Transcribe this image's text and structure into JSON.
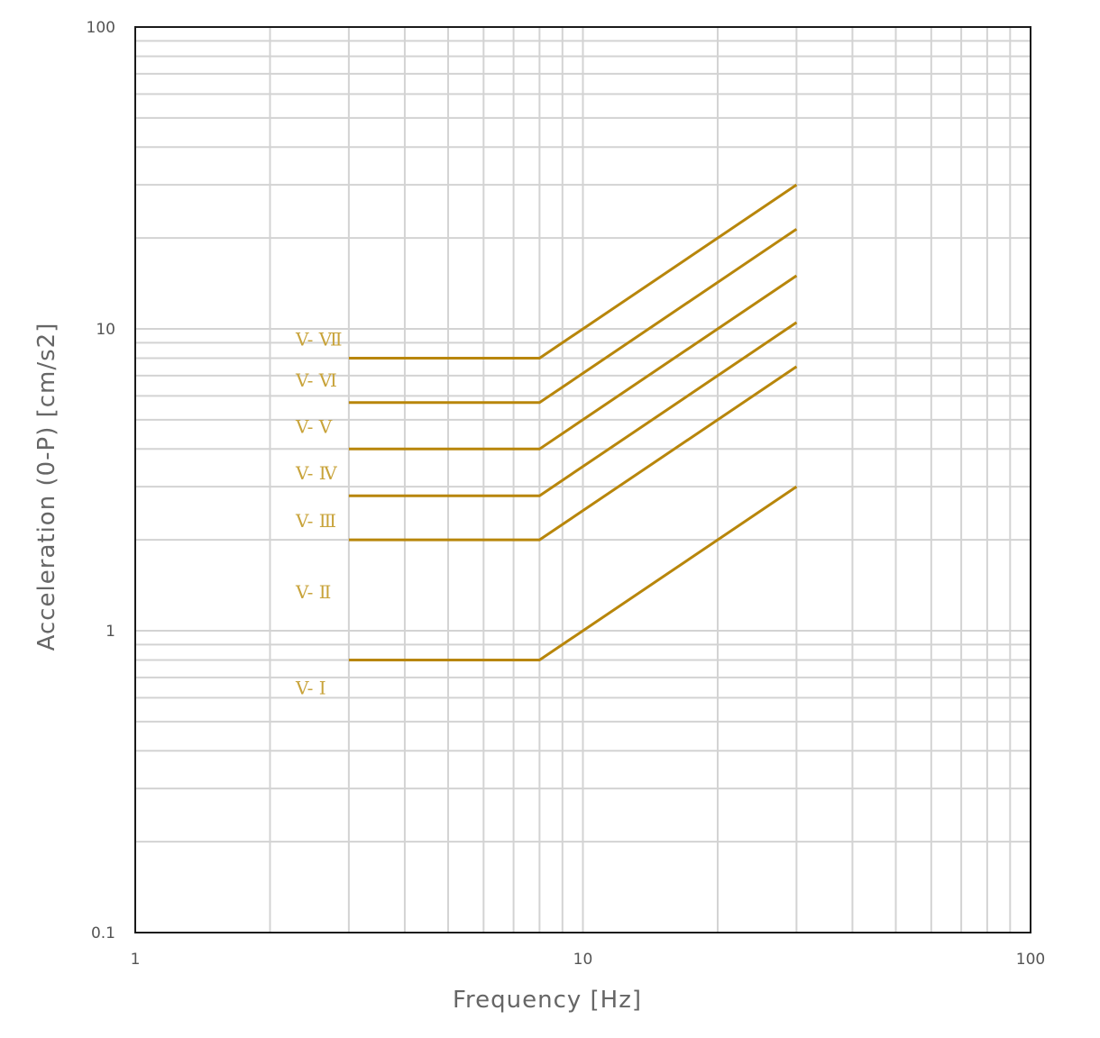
{
  "chart_data": {
    "type": "line",
    "title": "",
    "xlabel": "Frequency [Hz]",
    "ylabel": "Acceleration (0-P) [cm/s2]",
    "xscale": "log",
    "yscale": "log",
    "xlim": [
      1,
      100
    ],
    "ylim": [
      0.1,
      100
    ],
    "grid": true,
    "legend": "none",
    "x_tick_labels": [
      "1",
      "10",
      "100"
    ],
    "y_tick_labels": [
      "0.1",
      "1",
      "10",
      "100"
    ],
    "color": "#b8860b",
    "series": [
      {
        "name": "V- Ⅰ",
        "x": [
          3,
          8,
          30
        ],
        "y": [
          0.8,
          0.8,
          3.0
        ]
      },
      {
        "name": "V- Ⅱ",
        "x": [],
        "y": []
      },
      {
        "name": "V- Ⅲ",
        "x": [
          3,
          8,
          30
        ],
        "y": [
          2.0,
          2.0,
          7.5
        ]
      },
      {
        "name": "V- Ⅳ",
        "x": [
          3,
          8,
          30
        ],
        "y": [
          2.8,
          2.8,
          10.5
        ]
      },
      {
        "name": "V- Ⅴ",
        "x": [
          3,
          8,
          30
        ],
        "y": [
          4.0,
          4.0,
          15.0
        ]
      },
      {
        "name": "V- Ⅵ",
        "x": [
          3,
          8,
          30
        ],
        "y": [
          5.7,
          5.7,
          21.4
        ]
      },
      {
        "name": "V- Ⅶ",
        "x": [
          3,
          8,
          30
        ],
        "y": [
          8.0,
          8.0,
          30.0
        ]
      }
    ]
  }
}
